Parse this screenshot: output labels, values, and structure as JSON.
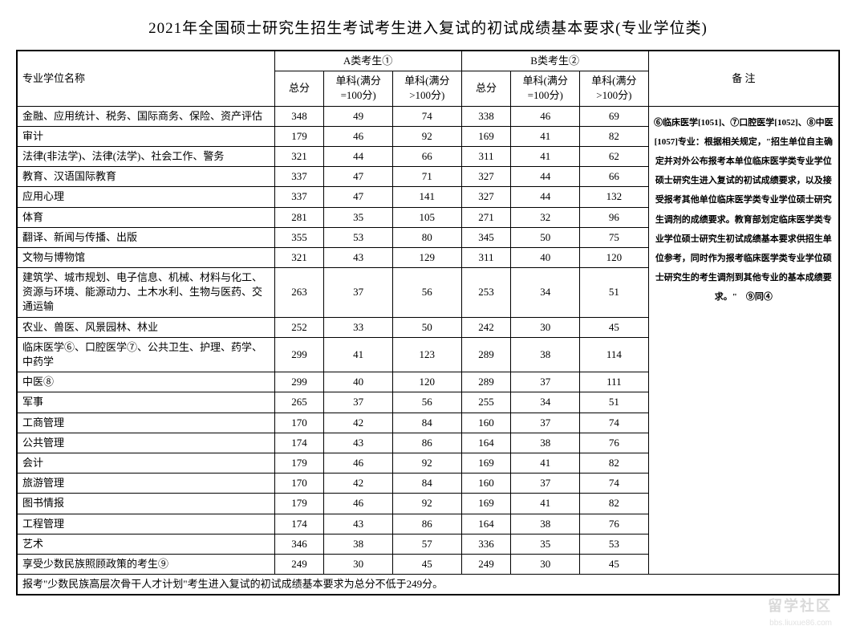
{
  "title": "2021年全国硕士研究生招生考试考生进入复试的初试成绩基本要求(专业学位类)",
  "headers": {
    "major": "专业学位名称",
    "groupA": "A类考生①",
    "groupB": "B类考生②",
    "total": "总分",
    "sub100": "单科(满分=100分)",
    "subOver100": "单科(满分>100分)",
    "notes": "备 注"
  },
  "colors": {
    "background": "#ffffff",
    "border": "#000000",
    "text": "#000000"
  },
  "fonts": {
    "title_size": 19,
    "body_size": 13,
    "notes_size": 11
  },
  "rows": [
    {
      "name": "金融、应用统计、税务、国际商务、保险、资产评估",
      "a_total": "348",
      "a_s100": "49",
      "a_sOver": "74",
      "b_total": "338",
      "b_s100": "46",
      "b_sOver": "69"
    },
    {
      "name": "审计",
      "a_total": "179",
      "a_s100": "46",
      "a_sOver": "92",
      "b_total": "169",
      "b_s100": "41",
      "b_sOver": "82"
    },
    {
      "name": "法律(非法学)、法律(法学)、社会工作、警务",
      "a_total": "321",
      "a_s100": "44",
      "a_sOver": "66",
      "b_total": "311",
      "b_s100": "41",
      "b_sOver": "62"
    },
    {
      "name": "教育、汉语国际教育",
      "a_total": "337",
      "a_s100": "47",
      "a_sOver": "71",
      "b_total": "327",
      "b_s100": "44",
      "b_sOver": "66"
    },
    {
      "name": "应用心理",
      "a_total": "337",
      "a_s100": "47",
      "a_sOver": "141",
      "b_total": "327",
      "b_s100": "44",
      "b_sOver": "132"
    },
    {
      "name": "体育",
      "a_total": "281",
      "a_s100": "35",
      "a_sOver": "105",
      "b_total": "271",
      "b_s100": "32",
      "b_sOver": "96"
    },
    {
      "name": "翻译、新闻与传播、出版",
      "a_total": "355",
      "a_s100": "53",
      "a_sOver": "80",
      "b_total": "345",
      "b_s100": "50",
      "b_sOver": "75"
    },
    {
      "name": "文物与博物馆",
      "a_total": "321",
      "a_s100": "43",
      "a_sOver": "129",
      "b_total": "311",
      "b_s100": "40",
      "b_sOver": "120"
    },
    {
      "name": "建筑学、城市规划、电子信息、机械、材料与化工、资源与环境、能源动力、土木水利、生物与医药、交通运输",
      "a_total": "263",
      "a_s100": "37",
      "a_sOver": "56",
      "b_total": "253",
      "b_s100": "34",
      "b_sOver": "51"
    },
    {
      "name": "农业、兽医、风景园林、林业",
      "a_total": "252",
      "a_s100": "33",
      "a_sOver": "50",
      "b_total": "242",
      "b_s100": "30",
      "b_sOver": "45"
    },
    {
      "name": "临床医学⑥、口腔医学⑦、公共卫生、护理、药学、中药学",
      "a_total": "299",
      "a_s100": "41",
      "a_sOver": "123",
      "b_total": "289",
      "b_s100": "38",
      "b_sOver": "114"
    },
    {
      "name": "中医⑧",
      "a_total": "299",
      "a_s100": "40",
      "a_sOver": "120",
      "b_total": "289",
      "b_s100": "37",
      "b_sOver": "111"
    },
    {
      "name": "军事",
      "a_total": "265",
      "a_s100": "37",
      "a_sOver": "56",
      "b_total": "255",
      "b_s100": "34",
      "b_sOver": "51"
    },
    {
      "name": "工商管理",
      "a_total": "170",
      "a_s100": "42",
      "a_sOver": "84",
      "b_total": "160",
      "b_s100": "37",
      "b_sOver": "74"
    },
    {
      "name": "公共管理",
      "a_total": "174",
      "a_s100": "43",
      "a_sOver": "86",
      "b_total": "164",
      "b_s100": "38",
      "b_sOver": "76"
    },
    {
      "name": "会计",
      "a_total": "179",
      "a_s100": "46",
      "a_sOver": "92",
      "b_total": "169",
      "b_s100": "41",
      "b_sOver": "82"
    },
    {
      "name": "旅游管理",
      "a_total": "170",
      "a_s100": "42",
      "a_sOver": "84",
      "b_total": "160",
      "b_s100": "37",
      "b_sOver": "74"
    },
    {
      "name": "图书情报",
      "a_total": "179",
      "a_s100": "46",
      "a_sOver": "92",
      "b_total": "169",
      "b_s100": "41",
      "b_sOver": "82"
    },
    {
      "name": "工程管理",
      "a_total": "174",
      "a_s100": "43",
      "a_sOver": "86",
      "b_total": "164",
      "b_s100": "38",
      "b_sOver": "76"
    },
    {
      "name": "艺术",
      "a_total": "346",
      "a_s100": "38",
      "a_sOver": "57",
      "b_total": "336",
      "b_s100": "35",
      "b_sOver": "53"
    },
    {
      "name": "享受少数民族照顾政策的考生⑨",
      "a_total": "249",
      "a_s100": "30",
      "a_sOver": "45",
      "b_total": "249",
      "b_s100": "30",
      "b_sOver": "45"
    }
  ],
  "footnote": "报考\"少数民族高层次骨干人才计划\"考生进入复试的初试成绩基本要求为总分不低于249分。",
  "notes_text": "⑥临床医学[1051]、⑦口腔医学[1052]、⑧中医[1057]专业：根据相关规定，\"招生单位自主确定并对外公布报考本单位临床医学类专业学位硕士研究生进入复试的初试成绩要求，以及接受报考其他单位临床医学类专业学位硕士研究生调剂的成绩要求。教育部划定临床医学类专业学位硕士研究生初试成绩基本要求供招生单位参考，同时作为报考临床医学类专业学位硕士研究生的考生调剂到其他专业的基本成绩要求。\"　⑨同④",
  "watermark": "留学社区",
  "watermark_sub": "bbs.liuxue86.com"
}
